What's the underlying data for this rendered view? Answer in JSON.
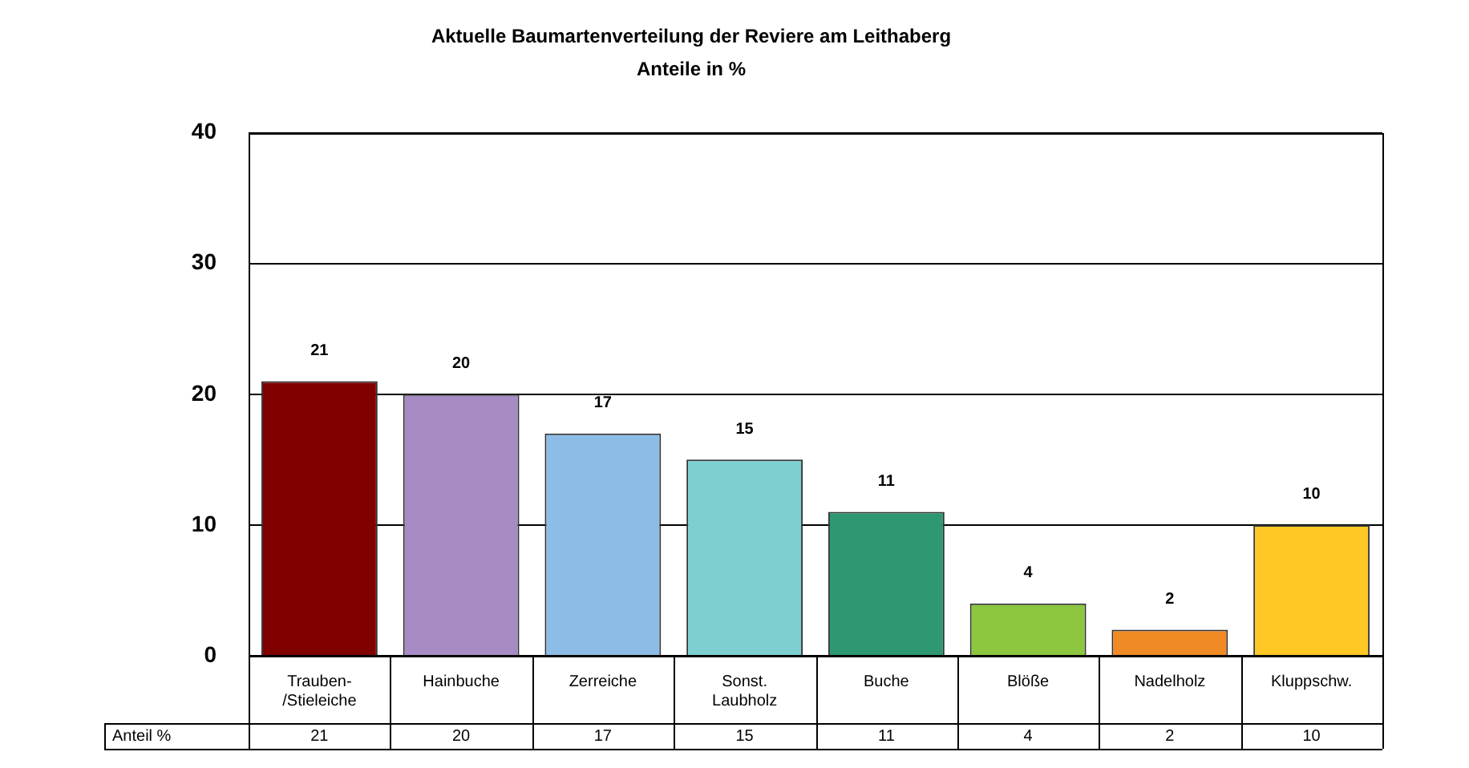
{
  "chart_data": {
    "type": "bar",
    "title": "Aktuelle Baumartenverteilung der Reviere am Leithaberg",
    "subtitle": "Anteile in %",
    "categories": [
      "Trauben-/Stieleiche",
      "Hainbuche",
      "Zerreiche",
      "Sonst. Laubholz",
      "Buche",
      "Blöße",
      "Nadelholz",
      "Kluppschw."
    ],
    "series": [
      {
        "name": "Anteil %",
        "values": [
          21,
          20,
          17,
          15,
          11,
          4,
          2,
          10
        ],
        "value_labels": [
          "21",
          "20",
          "17",
          "15",
          "11",
          "4",
          "2",
          "10"
        ],
        "colors": [
          "#800000",
          "#a68bc4",
          "#8dbde6",
          "#7ecfcf",
          "#2e9970",
          "#8dc63f",
          "#f08a24",
          "#ffc825"
        ]
      }
    ],
    "ylim": [
      0,
      40
    ],
    "yticks": [
      0,
      10,
      20,
      30,
      40
    ],
    "grid": "y",
    "legend": false,
    "annotations": [
      "21",
      "20",
      "17",
      "15",
      "11",
      "4",
      "2",
      "10"
    ]
  }
}
